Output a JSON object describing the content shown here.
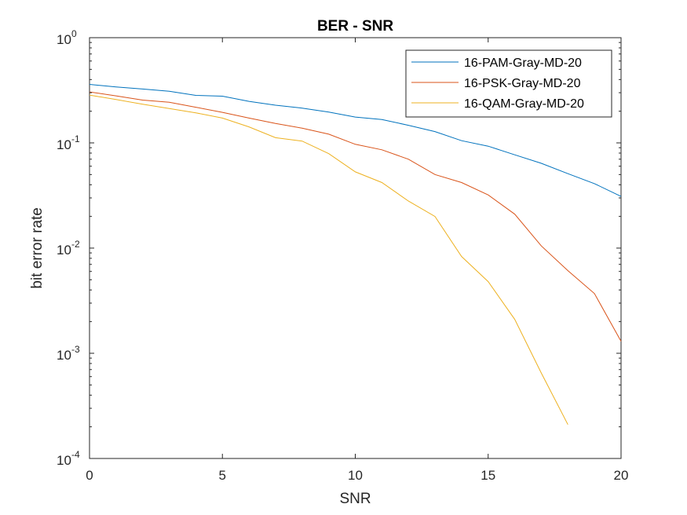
{
  "chart_data": {
    "type": "line",
    "title": "BER - SNR",
    "xlabel": "SNR",
    "ylabel": "bit error rate",
    "xlim": [
      0,
      20
    ],
    "ylim": [
      0.0001,
      1
    ],
    "yscale": "log",
    "grid": false,
    "legend_position": "top-right",
    "x_ticks": [
      0,
      5,
      10,
      15,
      20
    ],
    "x_tick_labels": [
      "0",
      "5",
      "10",
      "15",
      "20"
    ],
    "y_ticks": [
      {
        "value": 1,
        "base": "10",
        "exp": "0"
      },
      {
        "value": 0.1,
        "base": "10",
        "exp": "-1"
      },
      {
        "value": 0.01,
        "base": "10",
        "exp": "-2"
      },
      {
        "value": 0.001,
        "base": "10",
        "exp": "-3"
      },
      {
        "value": 0.0001,
        "base": "10",
        "exp": "-4"
      }
    ],
    "series": [
      {
        "name": "16-PAM-Gray-MD-20",
        "color": "#0072BD",
        "x": [
          0,
          1,
          2,
          3,
          4,
          5,
          6,
          7,
          8,
          9,
          10,
          11,
          12,
          13,
          14,
          15,
          16,
          17,
          18,
          19,
          20
        ],
        "y": [
          0.36,
          0.34,
          0.325,
          0.31,
          0.283,
          0.278,
          0.248,
          0.228,
          0.214,
          0.196,
          0.176,
          0.167,
          0.147,
          0.128,
          0.105,
          0.093,
          0.077,
          0.064,
          0.051,
          0.041,
          0.031
        ]
      },
      {
        "name": "16-PSK-Gray-MD-20",
        "color": "#D95319",
        "x": [
          0,
          1,
          2,
          3,
          4,
          5,
          6,
          7,
          8,
          9,
          10,
          11,
          12,
          13,
          14,
          15,
          16,
          17,
          18,
          19,
          20
        ],
        "y": [
          0.305,
          0.28,
          0.255,
          0.243,
          0.218,
          0.195,
          0.172,
          0.153,
          0.138,
          0.121,
          0.097,
          0.086,
          0.07,
          0.05,
          0.042,
          0.032,
          0.021,
          0.0105,
          0.0061,
          0.0037,
          0.0013
        ]
      },
      {
        "name": "16-QAM-Gray-MD-20",
        "color": "#EDB120",
        "x": [
          0,
          1,
          2,
          3,
          4,
          5,
          6,
          7,
          8,
          9,
          10,
          11,
          12,
          13,
          14,
          15,
          16,
          17,
          18
        ],
        "y": [
          0.285,
          0.258,
          0.233,
          0.212,
          0.193,
          0.172,
          0.142,
          0.112,
          0.104,
          0.079,
          0.053,
          0.042,
          0.028,
          0.02,
          0.0083,
          0.0048,
          0.0021,
          0.00065,
          0.00021
        ]
      }
    ]
  }
}
